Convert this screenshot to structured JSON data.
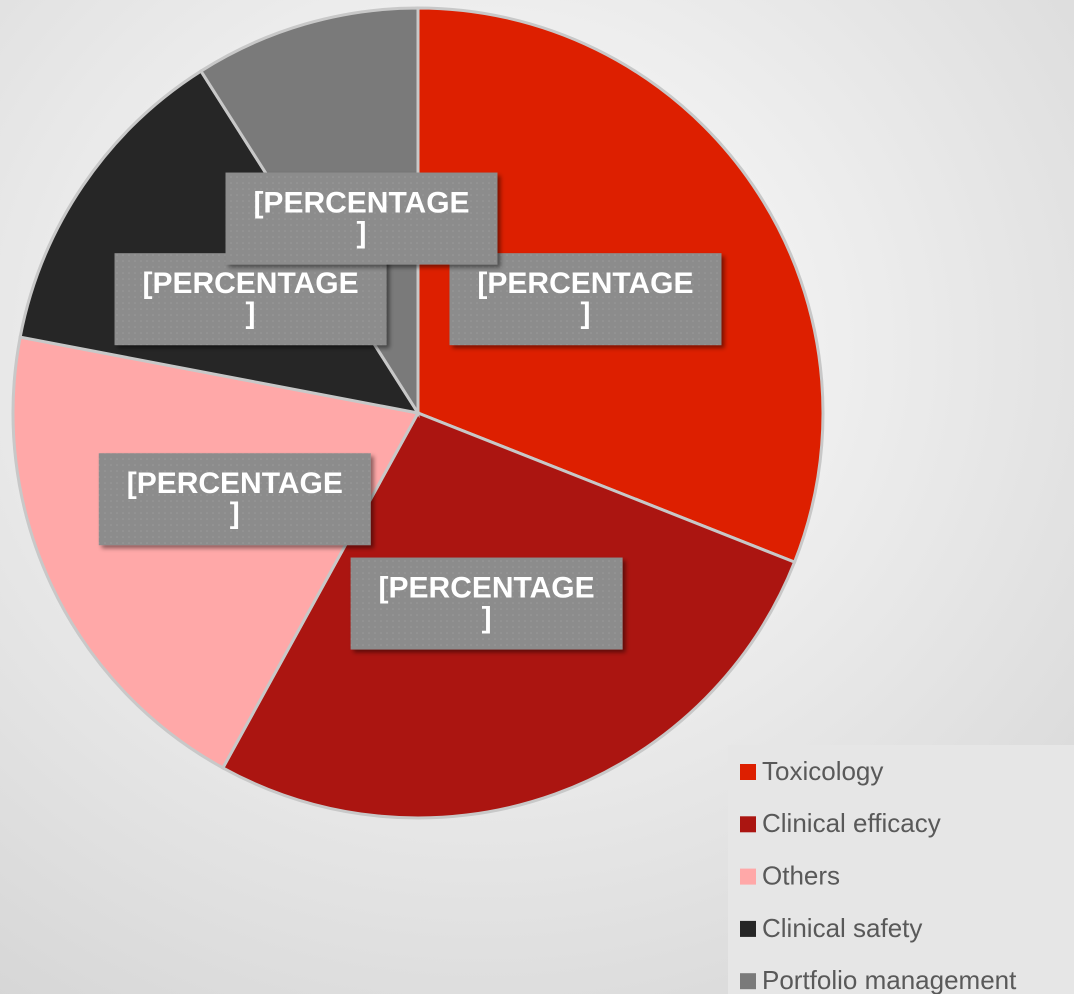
{
  "chart_data": {
    "type": "pie",
    "categories": [
      "Toxicology",
      "Clinical efficacy",
      "Others",
      "Clinical safety",
      "Portfolio management"
    ],
    "values": [
      31,
      27,
      20,
      13,
      9
    ],
    "value_labels": [
      "[PERCENTAGE]",
      "[PERCENTAGE]",
      "[PERCENTAGE]",
      "[PERCENTAGE]",
      "[PERCENTAGE]"
    ],
    "colors": [
      "#dd1f00",
      "#ab1511",
      "#ffa8a8",
      "#262626",
      "#7a7a7a"
    ],
    "legend": "bottom-right"
  }
}
